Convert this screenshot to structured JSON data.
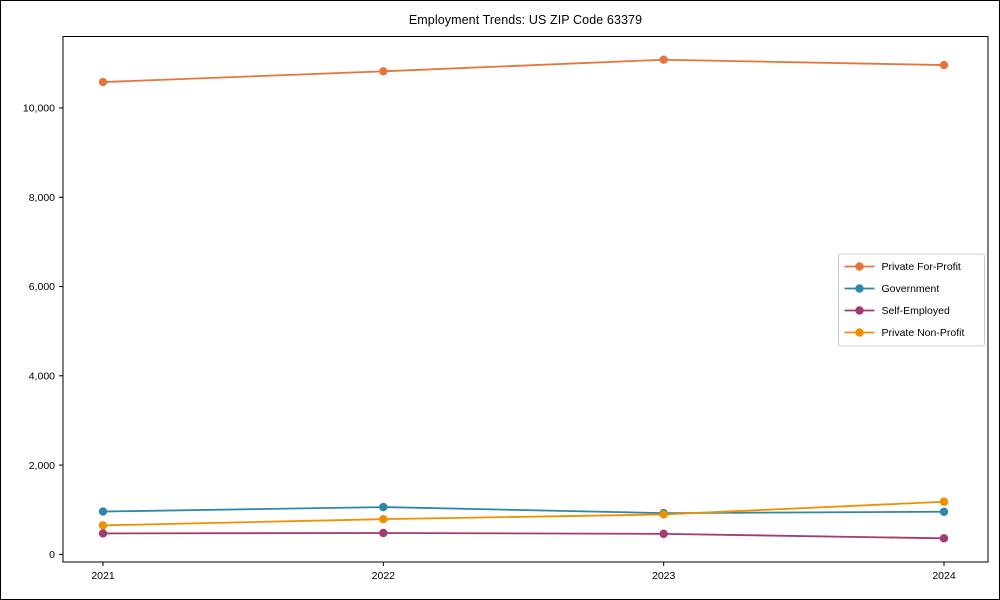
{
  "chart_data": {
    "type": "line",
    "title": "Employment Trends: US ZIP Code 63379",
    "xlabel": "",
    "ylabel": "",
    "x": [
      2021,
      2022,
      2023,
      2024
    ],
    "xtick_labels": [
      "2021",
      "2022",
      "2023",
      "2024"
    ],
    "yticks": [
      0,
      2000,
      4000,
      6000,
      8000,
      10000
    ],
    "ytick_labels": [
      "0",
      "2,000",
      "4,000",
      "6,000",
      "8,000",
      "10,000"
    ],
    "ylim": [
      -170,
      11600
    ],
    "grid": false,
    "marker": "circle",
    "legend_position": "center-right",
    "axis_color": "#000000",
    "legend_border_color": "#cccccc",
    "background_color": "#ffffff",
    "series": [
      {
        "name": "Private For-Profit",
        "color": "#E8743B",
        "values": [
          10580,
          10820,
          11080,
          10960
        ]
      },
      {
        "name": "Government",
        "color": "#2E86AB",
        "values": [
          960,
          1060,
          925,
          955
        ]
      },
      {
        "name": "Self-Employed",
        "color": "#A23B72",
        "values": [
          470,
          480,
          460,
          360
        ]
      },
      {
        "name": "Private Non-Profit",
        "color": "#F18F01",
        "values": [
          650,
          790,
          895,
          1180
        ]
      }
    ]
  }
}
